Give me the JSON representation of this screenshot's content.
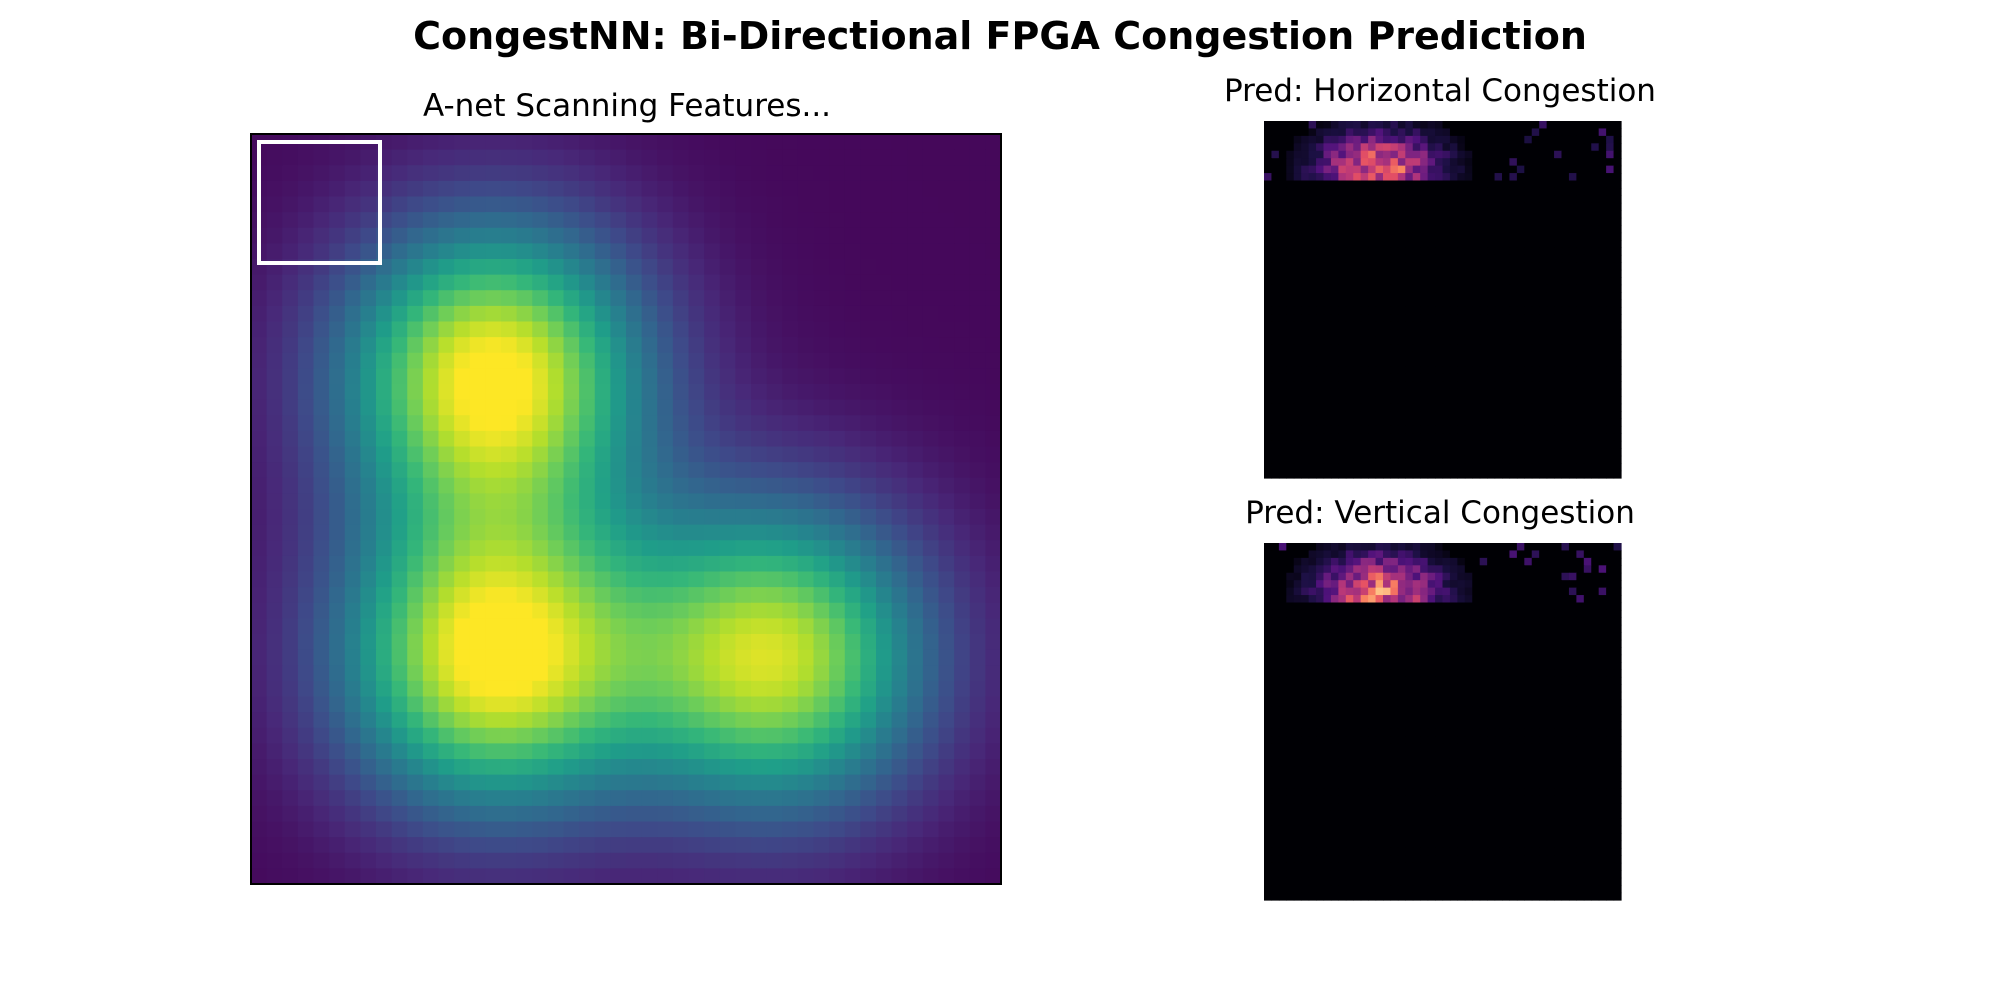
{
  "figure": {
    "title": "CongestNN: Bi-Directional FPGA Congestion Prediction"
  },
  "chart_data": [
    {
      "type": "heatmap",
      "title": "A-net Scanning Features...",
      "grid": false,
      "colormap": "viridis",
      "grid_size": [
        48,
        48
      ],
      "blobs": [
        {
          "row": 15,
          "col": 15,
          "intensity": 1.0
        },
        {
          "row": 33,
          "col": 15,
          "intensity": 1.0
        },
        {
          "row": 33,
          "col": 33,
          "intensity": 0.9
        }
      ],
      "highlight_box": {
        "rows": [
          0,
          8
        ],
        "cols": [
          0,
          8
        ],
        "color": "#ffffff"
      }
    },
    {
      "type": "heatmap",
      "title": "Pred: Horizontal Congestion",
      "grid": false,
      "colormap": "magma",
      "grid_size": [
        48,
        48
      ],
      "active_rows": [
        0,
        7
      ],
      "peak": {
        "row": 6,
        "col": 15
      }
    },
    {
      "type": "heatmap",
      "title": "Pred: Vertical Congestion",
      "grid": false,
      "colormap": "magma",
      "grid_size": [
        48,
        48
      ],
      "active_rows": [
        0,
        7
      ],
      "peak": {
        "row": 6,
        "col": 15
      }
    }
  ]
}
